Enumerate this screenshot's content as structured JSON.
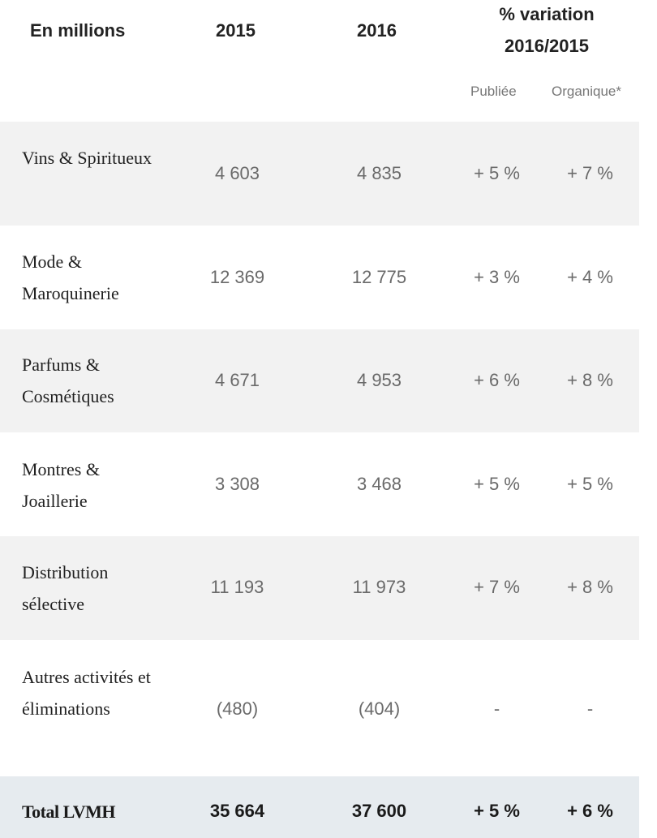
{
  "header": {
    "label": "En millions",
    "year1": "2015",
    "year2": "2016",
    "variation_line1": "% variation",
    "variation_line2": "2016/2015",
    "sub_published": "Publiée",
    "sub_organic": "Organique*"
  },
  "rows": [
    {
      "label": "Vins & Spiritueux",
      "v2015": "4 603",
      "v2016": "4 835",
      "published": "+ 5 %",
      "organic": "+ 7 %"
    },
    {
      "label": "Mode & Maroquinerie",
      "v2015": "12 369",
      "v2016": "12 775",
      "published": "+ 3 %",
      "organic": "+ 4 %"
    },
    {
      "label": "Parfums & Cosmétiques",
      "v2015": "4 671",
      "v2016": "4 953",
      "published": "+ 6 %",
      "organic": "+ 8 %"
    },
    {
      "label": "Montres & Joaillerie",
      "v2015": "3 308",
      "v2016": "3 468",
      "published": "+ 5 %",
      "organic": "+ 5 %"
    },
    {
      "label": "Distribution sélective",
      "v2015": "11 193",
      "v2016": "11 973",
      "published": "+ 7 %",
      "organic": "+ 8 %"
    },
    {
      "label": "Autres activités et éliminations",
      "v2015": "(480)",
      "v2016": "(404)",
      "published": "-",
      "organic": "-"
    }
  ],
  "total": {
    "label": "Total LVMH",
    "v2015": "35 664",
    "v2016": "37 600",
    "published": "+ 5 %",
    "organic": "+ 6 %"
  }
}
